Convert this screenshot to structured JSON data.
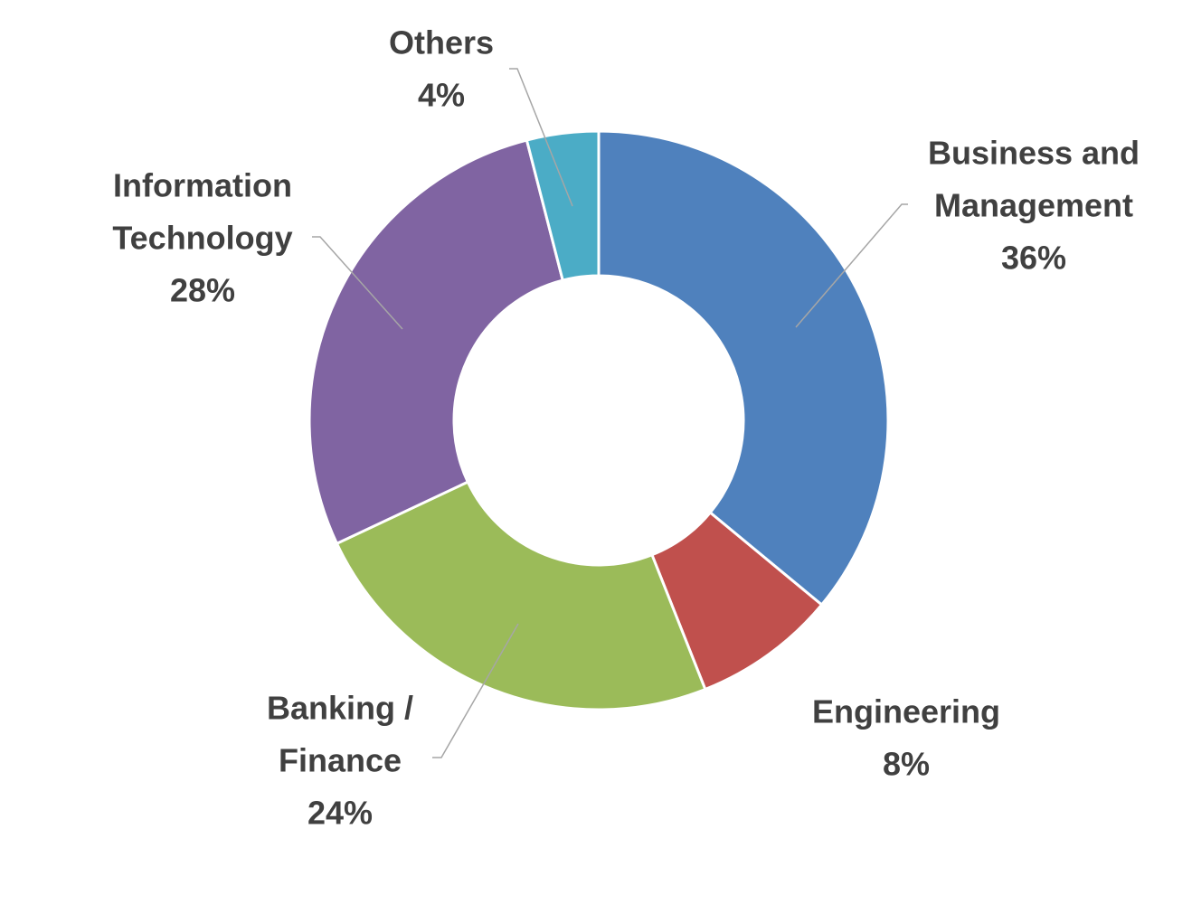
{
  "chart_data": {
    "type": "pie",
    "variant": "donut",
    "title": "",
    "slices": [
      {
        "label_lines": [
          "Business and",
          "Management"
        ],
        "value_label": "36%",
        "value": 36,
        "color": "#4f81bd"
      },
      {
        "label_lines": [
          "Engineering"
        ],
        "value_label": "8%",
        "value": 8,
        "color": "#c0504d"
      },
      {
        "label_lines": [
          "Banking /",
          "Finance"
        ],
        "value_label": "24%",
        "value": 24,
        "color": "#9bbb59"
      },
      {
        "label_lines": [
          "Information",
          "Technology"
        ],
        "value_label": "28%",
        "value": 28,
        "color": "#8064a2"
      },
      {
        "label_lines": [
          "Others"
        ],
        "value_label": "4%",
        "value": 4,
        "color": "#4bacc6"
      }
    ],
    "legend": "none",
    "start_angle": "12 o'clock",
    "direction": "clockwise"
  }
}
